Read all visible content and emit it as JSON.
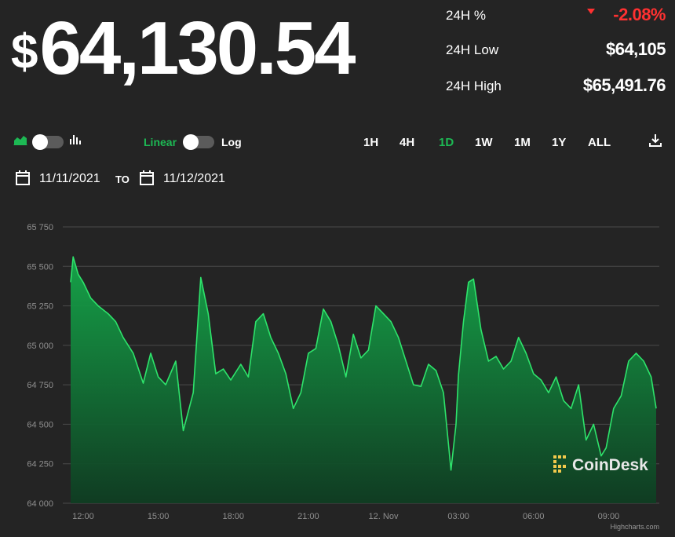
{
  "price": {
    "currency_symbol": "$",
    "value": "64,130.54"
  },
  "stats": {
    "change": {
      "label": "24H %",
      "value": "-2.08%"
    },
    "low": {
      "label": "24H Low",
      "value": "$64,105"
    },
    "high": {
      "label": "24H High",
      "value": "$65,491.76"
    }
  },
  "controls": {
    "linear_label": "Linear",
    "log_label": "Log",
    "ranges": [
      {
        "label": "1H",
        "active": false
      },
      {
        "label": "4H",
        "active": false
      },
      {
        "label": "1D",
        "active": true
      },
      {
        "label": "1W",
        "active": false
      },
      {
        "label": "1M",
        "active": false
      },
      {
        "label": "1Y",
        "active": false
      },
      {
        "label": "ALL",
        "active": false
      }
    ]
  },
  "dates": {
    "from": "11/11/2021",
    "to_label": "TO",
    "to": "11/12/2021"
  },
  "watermark": "CoinDesk",
  "credits": "Highcharts.com",
  "colors": {
    "accent": "#1db954",
    "down": "#ff3131",
    "background": "#242424"
  },
  "chart_data": {
    "type": "area",
    "y_tick_labels": [
      "64 000",
      "64 250",
      "64 500",
      "64 750",
      "65 000",
      "65 250",
      "65 500",
      "65 750"
    ],
    "x_tick_labels": [
      "12:00",
      "15:00",
      "18:00",
      "21:00",
      "12. Nov",
      "03:00",
      "06:00",
      "09:00"
    ],
    "ylim": [
      64000,
      65750
    ],
    "xlim_hours": [
      11.5,
      34.9
    ],
    "x_tick_hours": [
      12,
      15,
      18,
      21,
      24,
      27,
      30,
      33
    ],
    "grid": true,
    "x_hours": [
      11.5,
      11.6,
      11.8,
      12.0,
      12.3,
      12.6,
      13.0,
      13.3,
      13.6,
      14.0,
      14.4,
      14.7,
      15.0,
      15.3,
      15.7,
      16.0,
      16.4,
      16.7,
      17.0,
      17.3,
      17.6,
      17.9,
      18.3,
      18.6,
      18.9,
      19.2,
      19.5,
      19.8,
      20.1,
      20.4,
      20.7,
      21.0,
      21.3,
      21.6,
      21.9,
      22.2,
      22.5,
      22.8,
      23.1,
      23.4,
      23.7,
      24.0,
      24.3,
      24.6,
      24.9,
      25.2,
      25.5,
      25.8,
      26.1,
      26.4,
      26.7,
      26.9,
      27.0,
      27.2,
      27.4,
      27.6,
      27.9,
      28.2,
      28.5,
      28.8,
      29.1,
      29.4,
      29.7,
      30.0,
      30.3,
      30.6,
      30.9,
      31.2,
      31.5,
      31.8,
      32.1,
      32.4,
      32.7,
      32.9,
      33.2,
      33.5,
      33.8,
      34.1,
      34.4,
      34.7,
      34.9
    ],
    "values": [
      65400,
      65560,
      65450,
      65400,
      65300,
      65250,
      65200,
      65150,
      65050,
      64950,
      64760,
      64950,
      64800,
      64750,
      64900,
      64460,
      64700,
      65430,
      65200,
      64820,
      64850,
      64780,
      64880,
      64800,
      65150,
      65200,
      65050,
      64950,
      64820,
      64600,
      64700,
      64950,
      64980,
      65230,
      65150,
      65000,
      64800,
      65070,
      64920,
      64970,
      65250,
      65200,
      65150,
      65050,
      64900,
      64750,
      64740,
      64880,
      64840,
      64700,
      64210,
      64500,
      64810,
      65150,
      65400,
      65420,
      65100,
      64900,
      64930,
      64850,
      64900,
      65050,
      64950,
      64820,
      64780,
      64700,
      64800,
      64650,
      64600,
      64750,
      64400,
      64500,
      64300,
      64350,
      64600,
      64680,
      64900,
      64950,
      64900,
      64800,
      64600
    ]
  }
}
